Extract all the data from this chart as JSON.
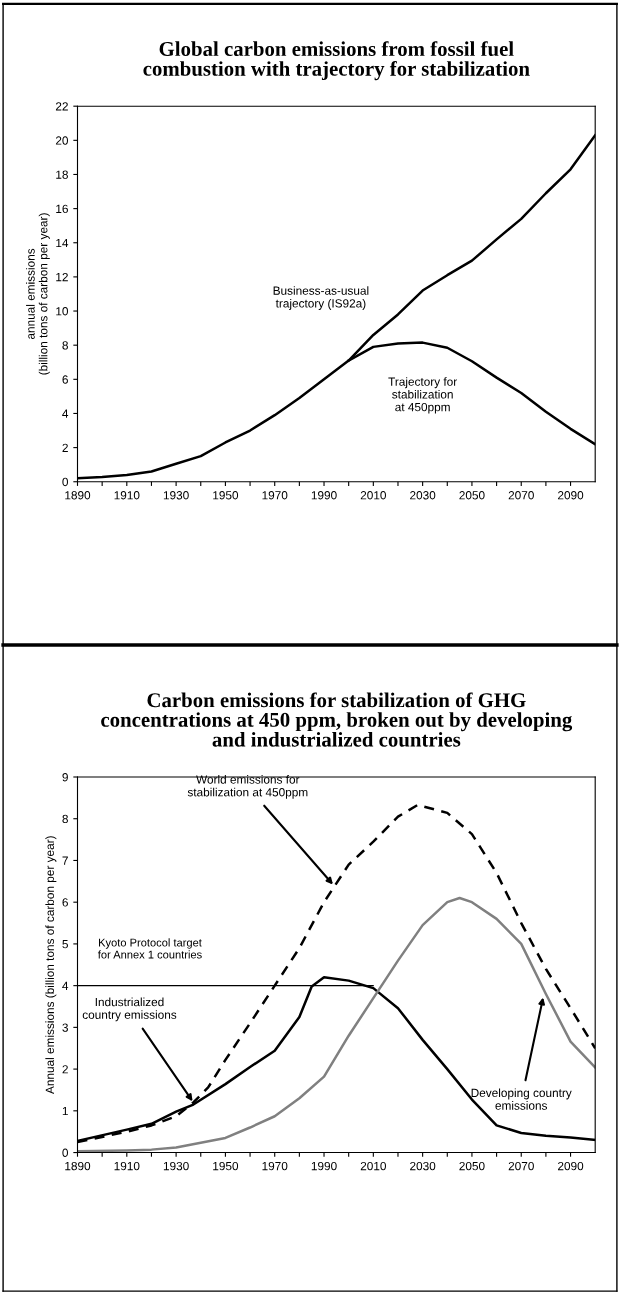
{
  "chart_data": [
    {
      "type": "line",
      "title": "Global carbon emissions from fossil fuel\ncombustion with trajectory for stabilization",
      "ylabel": "annual emissions\n(billion tons of carbon per year)",
      "series": [
        {
          "name": "Business-as-usual\ntrajectory (IS92a)",
          "color": "#000000",
          "line_style": "solid",
          "x": [
            1890,
            1900,
            1910,
            1920,
            1930,
            1940,
            1950,
            1960,
            1970,
            1980,
            1990,
            2000,
            2010,
            2020,
            2030,
            2040,
            2050,
            2060,
            2070,
            2080,
            2090,
            2100
          ],
          "values": [
            0.2,
            0.28,
            0.4,
            0.6,
            1.05,
            1.5,
            2.3,
            3.0,
            3.9,
            4.9,
            6.0,
            7.1,
            8.6,
            9.8,
            11.2,
            12.1,
            12.95,
            14.2,
            15.4,
            16.9,
            18.3,
            20.3
          ]
        },
        {
          "name": "Trajectory for\nstabilization\nat 450ppm",
          "color": "#000000",
          "line_style": "solid",
          "x": [
            2000,
            2010,
            2020,
            2030,
            2040,
            2050,
            2060,
            2070,
            2080,
            2090,
            2100
          ],
          "values": [
            7.1,
            7.9,
            8.1,
            8.15,
            7.85,
            7.06,
            6.1,
            5.2,
            4.1,
            3.1,
            2.2
          ]
        }
      ],
      "xlim": [
        1890,
        2100
      ],
      "xticks": [
        1890,
        {
          "value": 1900,
          "label": null
        },
        1910,
        {
          "value": 1920,
          "label": null
        },
        1930,
        {
          "value": 1940,
          "label": null
        },
        1950,
        {
          "value": 1960,
          "label": null
        },
        1970,
        {
          "value": 1980,
          "label": null
        },
        1990,
        {
          "value": 2000,
          "label": null
        },
        2010,
        {
          "value": 2020,
          "label": null
        },
        2030,
        {
          "value": 2040,
          "label": null
        },
        2050,
        {
          "value": 2060,
          "label": null
        },
        2070,
        {
          "value": 2080,
          "label": null
        },
        2090
      ],
      "ylim": [
        0,
        22
      ],
      "yticks": [
        0,
        2,
        4,
        6,
        8,
        10,
        12,
        14,
        16,
        18,
        20,
        22
      ],
      "grid": false,
      "marker": "none"
    },
    {
      "type": "line",
      "title": "Carbon emissions for stabilization of GHG\nconcentrations at 450 ppm, broken out by developing\nand industrialized countries",
      "ylabel": "Annual emissions (billion tons of carbon per year)",
      "series": [
        {
          "color": "#000000",
          "line_style": "solid",
          "x": [
            1890,
            1910,
            1920,
            1930,
            1937,
            1950,
            1960,
            1970,
            1980,
            1985,
            1990,
            2000,
            2010,
            2020,
            2030,
            2040,
            2050,
            2060,
            2070,
            2080,
            2090,
            2100
          ],
          "values": [
            0.28,
            0.55,
            0.69,
            0.98,
            1.15,
            1.64,
            2.05,
            2.44,
            3.25,
            3.98,
            4.2,
            4.12,
            3.94,
            3.46,
            2.7,
            2.0,
            1.27,
            0.65,
            0.47,
            0.4,
            0.36,
            0.3
          ]
        },
        {
          "color": "#808080",
          "line_style": "solid",
          "x": [
            1890,
            1910,
            1920,
            1930,
            1950,
            1960,
            1970,
            1980,
            1990,
            2000,
            2010,
            2020,
            2030,
            2040,
            2045,
            2050,
            2060,
            2070,
            2080,
            2090,
            2100
          ],
          "values": [
            0.03,
            0.05,
            0.07,
            0.12,
            0.35,
            0.6,
            0.87,
            1.3,
            1.82,
            2.8,
            3.7,
            4.6,
            5.45,
            6.0,
            6.1,
            6.0,
            5.6,
            5.0,
            3.8,
            2.66,
            2.04
          ]
        },
        {
          "color": "#000000",
          "line_style": "dashed",
          "x": [
            1890,
            1910,
            1920,
            1930,
            1937,
            1943,
            1950,
            1960,
            1970,
            1980,
            1990,
            2000,
            2010,
            2020,
            2028,
            2040,
            2050,
            2060,
            2070,
            2080,
            2090,
            2100
          ],
          "values": [
            0.25,
            0.5,
            0.65,
            0.87,
            1.2,
            1.56,
            2.22,
            3.1,
            4.0,
            4.9,
            6.0,
            6.9,
            7.45,
            8.05,
            8.33,
            8.14,
            7.63,
            6.7,
            5.5,
            4.4,
            3.46,
            2.5
          ]
        }
      ],
      "ref_lines": [
        {
          "axis": "y",
          "value": 4,
          "label": "Kyoto Protocol target\nfor Annex 1 countries",
          "color": "#000000"
        }
      ],
      "annotations": [
        {
          "text": "World emissions for\nstabilization at 450ppm",
          "x": 1994,
          "y": 6.4
        },
        {
          "text": "Industrialized\ncountry emissions",
          "x": 1937,
          "y": 1.2
        },
        {
          "text": "Developing country\nemissions",
          "x": 2079,
          "y": 3.75
        }
      ],
      "xlim": [
        1890,
        2100
      ],
      "xticks": [
        1890,
        {
          "value": 1900,
          "label": null
        },
        1910,
        {
          "value": 1920,
          "label": null
        },
        1930,
        {
          "value": 1940,
          "label": null
        },
        1950,
        {
          "value": 1960,
          "label": null
        },
        1970,
        {
          "value": 1980,
          "label": null
        },
        1990,
        {
          "value": 2000,
          "label": null
        },
        2010,
        {
          "value": 2020,
          "label": null
        },
        2030,
        {
          "value": 2040,
          "label": null
        },
        2050,
        {
          "value": 2060,
          "label": null
        },
        2070,
        {
          "value": 2080,
          "label": null
        },
        2090
      ],
      "ylim": [
        0,
        9
      ],
      "yticks": [
        0,
        1,
        2,
        3,
        4,
        5,
        6,
        7,
        8,
        9
      ],
      "grid": false,
      "marker": "none"
    }
  ]
}
